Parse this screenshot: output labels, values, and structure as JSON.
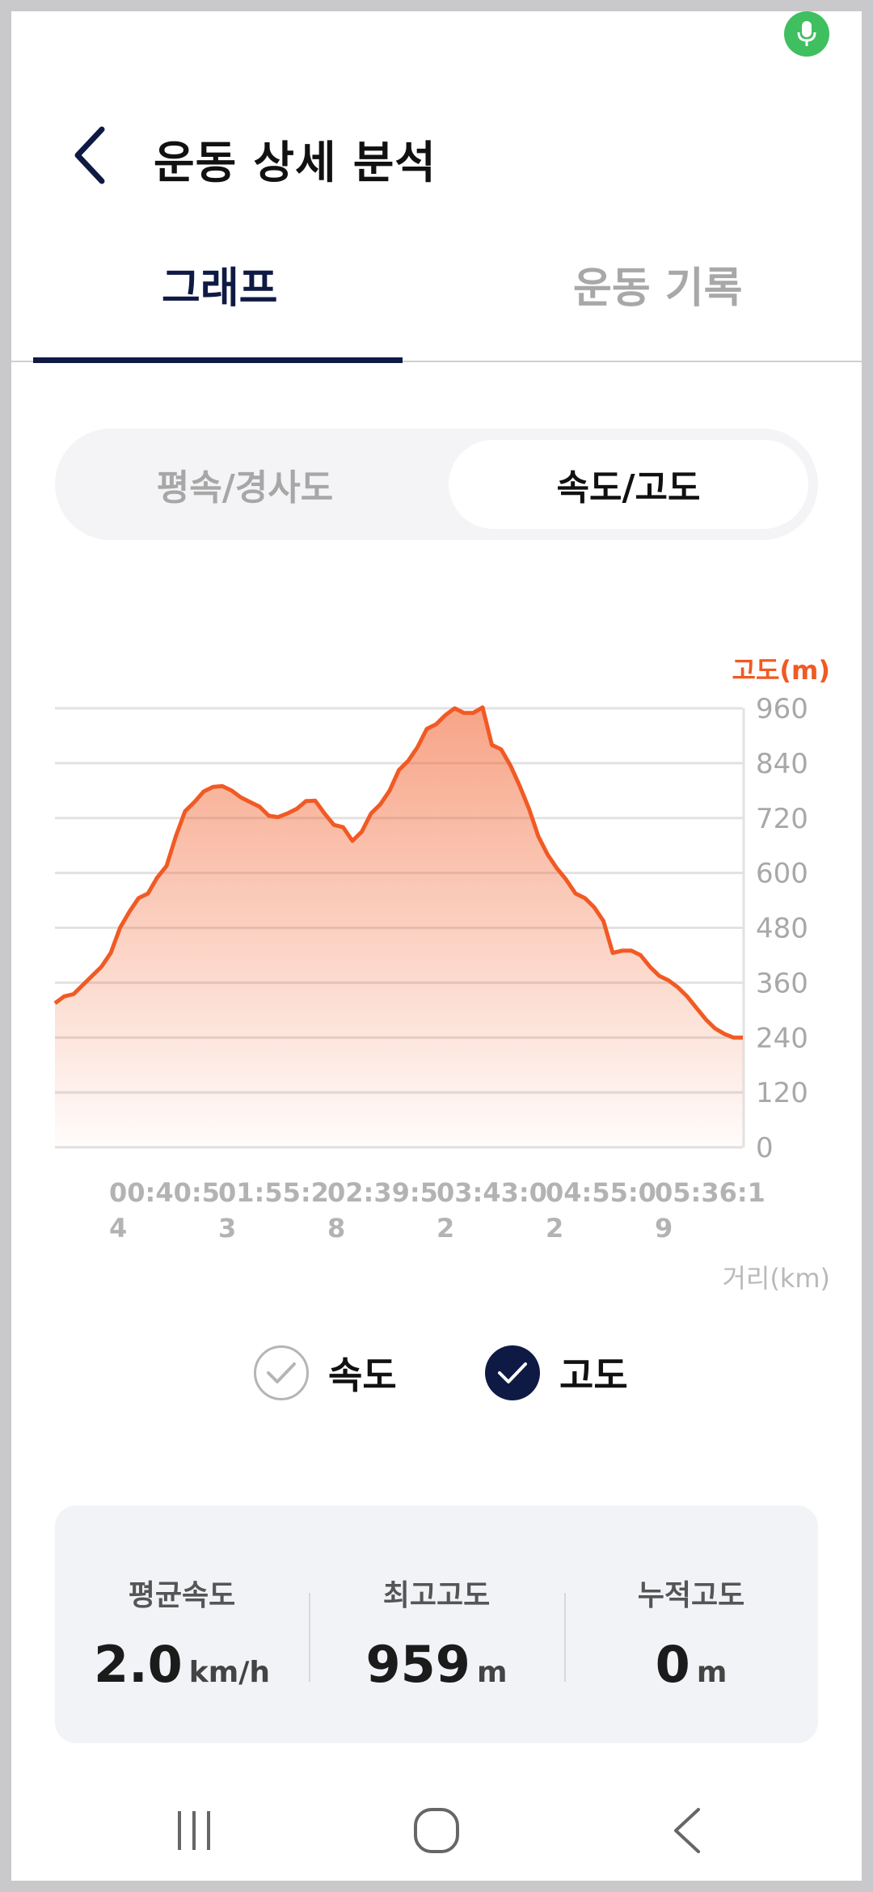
{
  "status": {
    "mic_icon": "mic-icon",
    "mic_color": "#3fbf5f"
  },
  "header": {
    "title": "운동 상세 분석",
    "back_icon": "chevron-left-icon"
  },
  "tabs": [
    {
      "label": "그래프",
      "active": true
    },
    {
      "label": "운동 기록",
      "active": false
    }
  ],
  "segment": {
    "left": "평속/경사도",
    "right": "속도/고도",
    "selected": "속도/고도"
  },
  "chart_data": {
    "type": "area",
    "y_label": "고도(m)",
    "x_label": "거리(km)",
    "ylim": [
      0,
      960
    ],
    "y_ticks": [
      "960",
      "840",
      "720",
      "600",
      "480",
      "360",
      "240",
      "120",
      "0"
    ],
    "x_tick_labels": [
      [
        "00:40:5",
        "4"
      ],
      [
        "01:55:2",
        "3"
      ],
      [
        "02:39:5",
        "8"
      ],
      [
        "03:43:0",
        "2"
      ],
      [
        "04:55:0",
        "2"
      ],
      [
        "05:36:1",
        "9"
      ]
    ],
    "series": [
      {
        "name": "고도",
        "color": "#f15a24",
        "values": [
          315,
          330,
          335,
          355,
          375,
          395,
          425,
          480,
          515,
          545,
          555,
          590,
          615,
          680,
          735,
          755,
          778,
          788,
          790,
          780,
          765,
          755,
          745,
          725,
          722,
          730,
          740,
          757,
          758,
          730,
          705,
          700,
          670,
          690,
          730,
          750,
          780,
          825,
          845,
          875,
          915,
          925,
          945,
          960,
          950,
          950,
          962,
          880,
          870,
          835,
          790,
          740,
          680,
          640,
          610,
          585,
          555,
          545,
          525,
          495,
          425,
          430,
          430,
          420,
          395,
          375,
          365,
          350,
          330,
          305,
          280,
          260,
          248,
          240,
          240
        ]
      }
    ],
    "accent": "#f15a24"
  },
  "legend": [
    {
      "label": "속도",
      "checked": false
    },
    {
      "label": "고도",
      "checked": true
    }
  ],
  "stats": [
    {
      "label": "평균속도",
      "value": "2.0",
      "unit": "km/h"
    },
    {
      "label": "최고고도",
      "value": "959",
      "unit": "m"
    },
    {
      "label": "누적고도",
      "value": "0",
      "unit": "m"
    }
  ],
  "colors": {
    "navy": "#0f1a44",
    "orange": "#f15a24",
    "muted": "#a8a8a8"
  },
  "nav": [
    "recents-icon",
    "home-icon",
    "back-icon"
  ]
}
